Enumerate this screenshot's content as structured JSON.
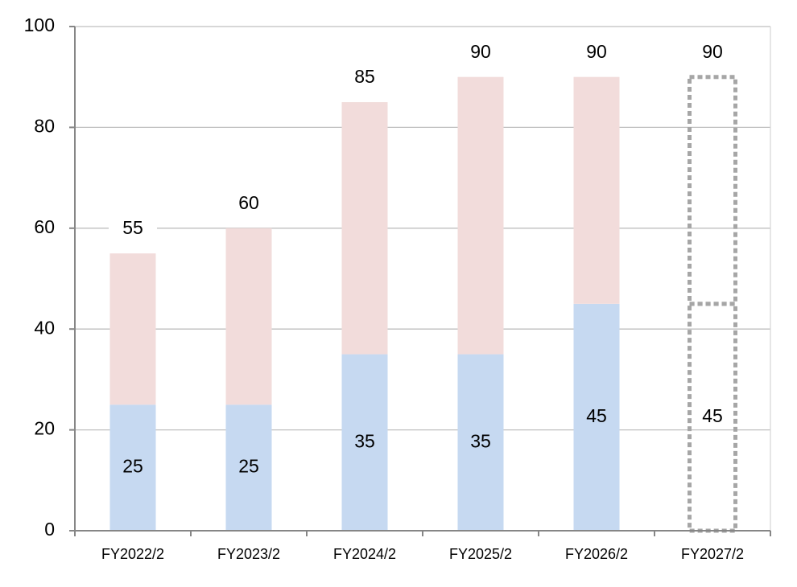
{
  "chart_data": {
    "type": "stacked_bar",
    "categories": [
      "FY2022/2",
      "FY2023/2",
      "FY2024/2",
      "FY2025/2",
      "FY2026/2",
      "FY2027/2"
    ],
    "series": [
      {
        "color": "#c6d9f1",
        "values": [
          25,
          25,
          35,
          35,
          45,
          45
        ]
      },
      {
        "color": "#f2dcdb",
        "values": [
          30,
          35,
          50,
          55,
          45,
          45
        ]
      }
    ],
    "totals": [
      55,
      60,
      85,
      90,
      90,
      90
    ],
    "projected": [
      false,
      false,
      false,
      false,
      false,
      true
    ],
    "projected_color": "#a6a6a6",
    "ylim": [
      0,
      100
    ],
    "yticks": [
      0,
      20,
      40,
      60,
      80,
      100
    ],
    "grid": true
  }
}
